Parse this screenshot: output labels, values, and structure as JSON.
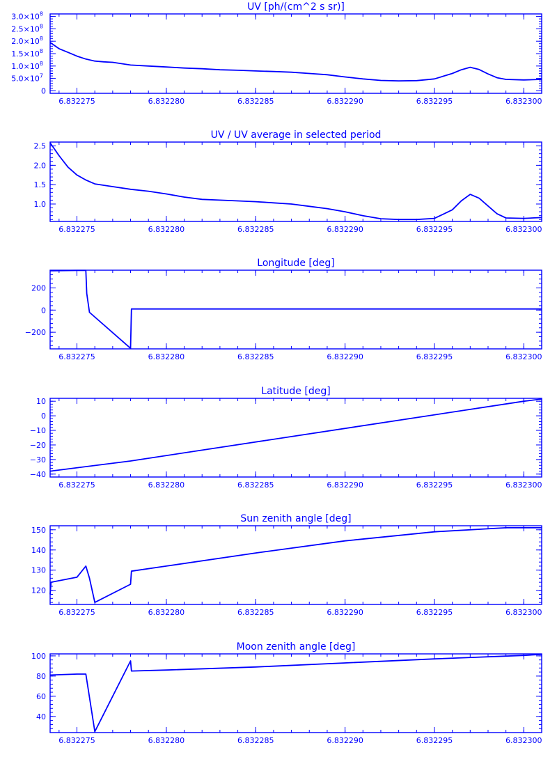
{
  "chart_data": [
    {
      "type": "line",
      "title": "UV [ph/(cm^2 s sr)]",
      "xlabel": "",
      "ylabel": "",
      "x_tick_labels": [
        "6.832275",
        "6.832280",
        "6.832285",
        "6.832290",
        "6.832295",
        "6.832300"
      ],
      "x_ticks": [
        6.832275,
        6.83228,
        6.832285,
        6.83229,
        6.832295,
        6.8323
      ],
      "xlim": [
        6.8322735,
        6.832301
      ],
      "y_ticks": [
        0,
        50000000.0,
        100000000.0,
        150000000.0,
        200000000.0,
        250000000.0,
        300000000.0
      ],
      "y_tick_labels": [
        {
          "mant": "0",
          "exp": ""
        },
        {
          "mant": "5.0×10",
          "exp": "7"
        },
        {
          "mant": "1.0×10",
          "exp": "8"
        },
        {
          "mant": "1.5×10",
          "exp": "8"
        },
        {
          "mant": "2.0×10",
          "exp": "8"
        },
        {
          "mant": "2.5×10",
          "exp": "8"
        },
        {
          "mant": "3.0×10",
          "exp": "8"
        }
      ],
      "ylim": [
        -10000000.0,
        310000000.0
      ],
      "series": [
        {
          "x": [
            6.8322735,
            6.832274,
            6.8322745,
            6.832275,
            6.8322755,
            6.832276,
            6.8322765,
            6.832277,
            6.832278,
            6.832279,
            6.83228,
            6.832281,
            6.832282,
            6.832283,
            6.832284,
            6.832285,
            6.832286,
            6.832287,
            6.832288,
            6.832289,
            6.83229,
            6.832291,
            6.832292,
            6.832293,
            6.832294,
            6.832295,
            6.832296,
            6.8322965,
            6.832297,
            6.8322975,
            6.832298,
            6.8322985,
            6.832299,
            6.8323,
            6.832301
          ],
          "y": [
            195000000.0,
            170000000.0,
            155000000.0,
            140000000.0,
            128000000.0,
            120000000.0,
            117000000.0,
            115000000.0,
            104000000.0,
            100000000.0,
            96000000.0,
            92000000.0,
            89000000.0,
            85000000.0,
            83000000.0,
            80000000.0,
            78000000.0,
            75000000.0,
            70000000.0,
            65000000.0,
            56000000.0,
            48000000.0,
            42000000.0,
            40000000.0,
            41000000.0,
            48000000.0,
            70000000.0,
            85000000.0,
            95000000.0,
            86000000.0,
            68000000.0,
            53000000.0,
            46000000.0,
            44000000.0,
            46000000.0
          ]
        }
      ]
    },
    {
      "type": "line",
      "title": "UV / UV average in selected period",
      "xlabel": "",
      "ylabel": "",
      "x_tick_labels": [
        "6.832275",
        "6.832280",
        "6.832285",
        "6.832290",
        "6.832295",
        "6.832300"
      ],
      "x_ticks": [
        6.832275,
        6.83228,
        6.832285,
        6.83229,
        6.832295,
        6.8323
      ],
      "xlim": [
        6.8322735,
        6.832301
      ],
      "y_ticks": [
        1.0,
        1.5,
        2.0,
        2.5
      ],
      "y_tick_labels": [
        {
          "mant": "1.0",
          "exp": ""
        },
        {
          "mant": "1.5",
          "exp": ""
        },
        {
          "mant": "2.0",
          "exp": ""
        },
        {
          "mant": "2.5",
          "exp": ""
        }
      ],
      "ylim": [
        0.55,
        2.6
      ],
      "series": [
        {
          "x": [
            6.8322735,
            6.832274,
            6.8322745,
            6.832275,
            6.8322755,
            6.832276,
            6.832277,
            6.832278,
            6.832279,
            6.83228,
            6.832281,
            6.832282,
            6.832283,
            6.832284,
            6.832285,
            6.832286,
            6.832287,
            6.832288,
            6.832289,
            6.83229,
            6.832291,
            6.832292,
            6.832293,
            6.832294,
            6.832295,
            6.832296,
            6.8322965,
            6.832297,
            6.8322975,
            6.832298,
            6.8322985,
            6.832299,
            6.8323,
            6.832301
          ],
          "y": [
            2.58,
            2.25,
            1.95,
            1.75,
            1.62,
            1.52,
            1.45,
            1.38,
            1.33,
            1.26,
            1.18,
            1.12,
            1.1,
            1.08,
            1.06,
            1.03,
            1.0,
            0.94,
            0.88,
            0.8,
            0.7,
            0.62,
            0.6,
            0.6,
            0.63,
            0.85,
            1.08,
            1.25,
            1.15,
            0.95,
            0.75,
            0.64,
            0.63,
            0.65
          ]
        }
      ]
    },
    {
      "type": "line",
      "title": "Longitude [deg]",
      "xlabel": "",
      "ylabel": "",
      "x_tick_labels": [
        "6.832275",
        "6.832280",
        "6.832285",
        "6.832290",
        "6.832295",
        "6.832300"
      ],
      "x_ticks": [
        6.832275,
        6.83228,
        6.832285,
        6.83229,
        6.832295,
        6.8323
      ],
      "xlim": [
        6.8322735,
        6.832301
      ],
      "y_ticks": [
        -200,
        0,
        200
      ],
      "y_tick_labels": [
        {
          "mant": "−200",
          "exp": ""
        },
        {
          "mant": "0",
          "exp": ""
        },
        {
          "mant": "200",
          "exp": ""
        }
      ],
      "ylim": [
        -350,
        360
      ],
      "series": [
        {
          "x": [
            6.8322735,
            6.832275,
            6.8322755,
            6.83227555,
            6.8322757,
            6.832278,
            6.83227805,
            6.8323,
            6.832301
          ],
          "y": [
            355,
            358,
            358,
            150,
            -20,
            -345,
            10,
            10,
            10
          ]
        }
      ]
    },
    {
      "type": "line",
      "title": "Latitude [deg]",
      "xlabel": "",
      "ylabel": "",
      "x_tick_labels": [
        "6.832275",
        "6.832280",
        "6.832285",
        "6.832290",
        "6.832295",
        "6.832300"
      ],
      "x_ticks": [
        6.832275,
        6.83228,
        6.832285,
        6.83229,
        6.832295,
        6.8323
      ],
      "xlim": [
        6.8322735,
        6.832301
      ],
      "y_ticks": [
        -40,
        -30,
        -20,
        -10,
        0,
        10
      ],
      "y_tick_labels": [
        {
          "mant": "−40",
          "exp": ""
        },
        {
          "mant": "−30",
          "exp": ""
        },
        {
          "mant": "−20",
          "exp": ""
        },
        {
          "mant": "−10",
          "exp": ""
        },
        {
          "mant": "0",
          "exp": ""
        },
        {
          "mant": "10",
          "exp": ""
        }
      ],
      "ylim": [
        -42,
        12
      ],
      "series": [
        {
          "x": [
            6.8322735,
            6.832278,
            6.8323,
            6.832301
          ],
          "y": [
            -38,
            -31,
            10,
            11.5
          ]
        }
      ]
    },
    {
      "type": "line",
      "title": "Sun zenith angle [deg]",
      "xlabel": "",
      "ylabel": "",
      "x_tick_labels": [
        "6.832275",
        "6.832280",
        "6.832285",
        "6.832290",
        "6.832295",
        "6.832300"
      ],
      "x_ticks": [
        6.832275,
        6.83228,
        6.832285,
        6.83229,
        6.832295,
        6.8323
      ],
      "xlim": [
        6.8322735,
        6.832301
      ],
      "y_ticks": [
        120,
        130,
        140,
        150
      ],
      "y_tick_labels": [
        {
          "mant": "120",
          "exp": ""
        },
        {
          "mant": "130",
          "exp": ""
        },
        {
          "mant": "140",
          "exp": ""
        },
        {
          "mant": "150",
          "exp": ""
        }
      ],
      "ylim": [
        113,
        152
      ],
      "series": [
        {
          "x": [
            6.8322735,
            6.83227355,
            6.832275,
            6.8322755,
            6.8322757,
            6.832276,
            6.832278,
            6.83227805,
            6.83228,
            6.832285,
            6.83229,
            6.832295,
            6.832299,
            6.832301
          ],
          "y": [
            118,
            124,
            126.5,
            132,
            126,
            114,
            123,
            129.5,
            132,
            138.5,
            144.5,
            149,
            151,
            151
          ]
        }
      ]
    },
    {
      "type": "line",
      "title": "Moon zenith angle [deg]",
      "xlabel": "",
      "ylabel": "",
      "x_tick_labels": [
        "6.832275",
        "6.832280",
        "6.832285",
        "6.832290",
        "6.832295",
        "6.832300"
      ],
      "x_ticks": [
        6.832275,
        6.83228,
        6.832285,
        6.83229,
        6.832295,
        6.8323
      ],
      "xlim": [
        6.8322735,
        6.832301
      ],
      "y_ticks": [
        40,
        60,
        80,
        100
      ],
      "y_tick_labels": [
        {
          "mant": "40",
          "exp": ""
        },
        {
          "mant": "60",
          "exp": ""
        },
        {
          "mant": "80",
          "exp": ""
        },
        {
          "mant": "100",
          "exp": ""
        }
      ],
      "ylim": [
        24,
        102
      ],
      "series": [
        {
          "x": [
            6.8322735,
            6.832275,
            6.8322755,
            6.832276,
            6.832278,
            6.83227805,
            6.83228,
            6.832285,
            6.83229,
            6.832295,
            6.8323,
            6.832301
          ],
          "y": [
            81,
            82,
            82,
            25,
            95,
            85,
            86,
            89,
            93,
            97,
            100.5,
            101.5
          ]
        }
      ]
    }
  ]
}
